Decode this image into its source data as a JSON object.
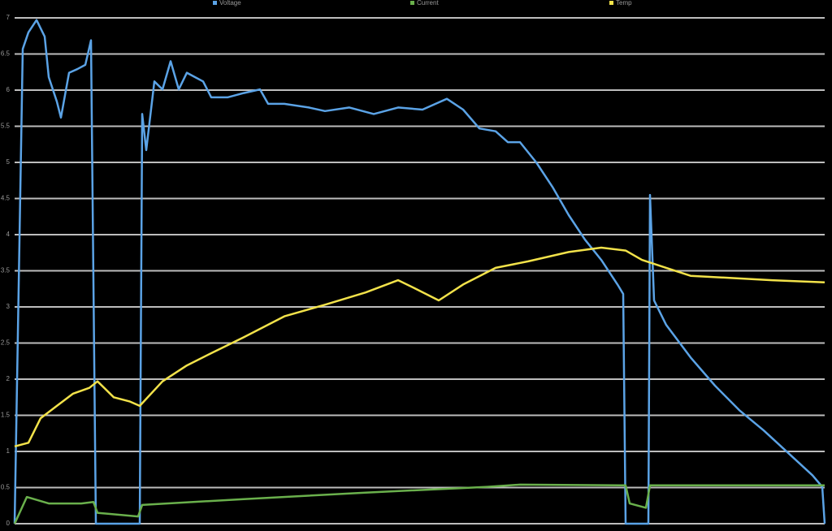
{
  "chart_data": {
    "type": "line",
    "xlim": [
      0,
      997
    ],
    "ylim": [
      0,
      7
    ],
    "yticks": [
      0,
      0.5,
      1,
      1.5,
      2,
      2.5,
      3,
      3.5,
      4,
      4.5,
      5,
      5.5,
      6,
      6.5,
      7
    ],
    "grid": true,
    "legend": "top",
    "series": [
      {
        "name": "Voltage",
        "color": "#5ba3e6",
        "x": [
          0,
          10,
          17,
          27,
          37,
          42,
          52,
          57,
          67,
          77,
          87,
          94,
          100,
          154,
          157,
          162,
          172,
          182,
          192,
          202,
          212,
          222,
          232,
          242,
          262,
          282,
          302,
          312,
          332,
          362,
          382,
          412,
          442,
          472,
          502,
          532,
          552,
          572,
          592,
          607,
          622,
          642,
          662,
          682,
          702,
          722,
          742,
          749,
          752,
          780,
          782,
          787,
          802,
          832,
          862,
          892,
          922,
          952,
          982,
          994,
          997
        ],
        "values": [
          0,
          6.57,
          6.8,
          6.97,
          6.74,
          6.18,
          5.84,
          5.62,
          6.24,
          6.29,
          6.35,
          6.69,
          0,
          0,
          5.67,
          5.17,
          6.12,
          6.01,
          6.4,
          6.01,
          6.24,
          6.18,
          6.12,
          5.9,
          5.9,
          5.96,
          6.01,
          5.81,
          5.81,
          5.76,
          5.71,
          5.76,
          5.67,
          5.76,
          5.73,
          5.88,
          5.73,
          5.47,
          5.43,
          5.28,
          5.28,
          5.0,
          4.66,
          4.27,
          3.93,
          3.65,
          3.31,
          3.18,
          0,
          0,
          4.55,
          3.09,
          2.75,
          2.3,
          1.91,
          1.57,
          1.29,
          0.98,
          0.67,
          0.51,
          0
        ]
      },
      {
        "name": "Current",
        "color": "#6ab04c",
        "x": [
          0,
          15,
          42,
          82,
          97,
          102,
          152,
          157,
          282,
          432,
          582,
          622,
          752,
          757,
          777,
          782,
          997
        ],
        "values": [
          0,
          0.37,
          0.28,
          0.28,
          0.3,
          0.15,
          0.1,
          0.26,
          0.34,
          0.43,
          0.51,
          0.54,
          0.53,
          0.28,
          0.22,
          0.53,
          0.53
        ]
      },
      {
        "name": "Temp",
        "color": "#f2e24a",
        "x": [
          0,
          17,
          32,
          52,
          72,
          92,
          102,
          122,
          142,
          154,
          182,
          212,
          242,
          282,
          332,
          382,
          432,
          472,
          492,
          522,
          552,
          592,
          632,
          682,
          722,
          752,
          772,
          802,
          832,
          882,
          932,
          997
        ],
        "values": [
          1.07,
          1.12,
          1.46,
          1.63,
          1.8,
          1.88,
          1.97,
          1.75,
          1.69,
          1.63,
          1.97,
          2.19,
          2.36,
          2.58,
          2.87,
          3.03,
          3.2,
          3.37,
          3.26,
          3.09,
          3.31,
          3.54,
          3.63,
          3.76,
          3.82,
          3.78,
          3.65,
          3.54,
          3.43,
          3.4,
          3.37,
          3.34
        ]
      }
    ]
  }
}
